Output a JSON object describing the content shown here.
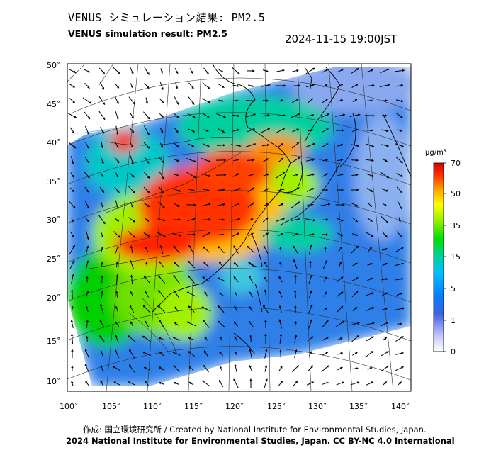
{
  "header": {
    "title_jp": "VENUS シミュレーション結果: PM2.5",
    "title_en": "VENUS simulation result: PM2.5",
    "timestamp": "2024-11-15 19:00JST"
  },
  "map": {
    "lat_labels": [
      "50˚",
      "45˚",
      "40˚",
      "35˚",
      "30˚",
      "25˚",
      "20˚",
      "15˚",
      "10˚"
    ],
    "lon_labels": [
      "100˚",
      "105˚",
      "110˚",
      "115˚",
      "120˚",
      "125˚",
      "130˚",
      "135˚",
      "140˚"
    ],
    "projection": "Lambert conformal",
    "field": "PM2.5 concentration with wind vectors"
  },
  "colorbar": {
    "unit": "μg/m³",
    "ticks": [
      "70",
      "50",
      "35",
      "15",
      "5",
      "1",
      "0"
    ],
    "colors": [
      "#d70000",
      "#ff2a00",
      "#ffa000",
      "#ffff00",
      "#a0f000",
      "#00e000",
      "#00d0a0",
      "#00c0ff",
      "#0080ff",
      "#4060e0",
      "#c8c8ff",
      "#ffffff"
    ]
  },
  "footer": {
    "credit_jp_en": "作成: 国立環境研究所 / Created by National Institute for Environmental Studies, Japan.",
    "license": "2024 National Institute for Environmental Studies, Japan. CC BY-NC 4.0 International"
  }
}
